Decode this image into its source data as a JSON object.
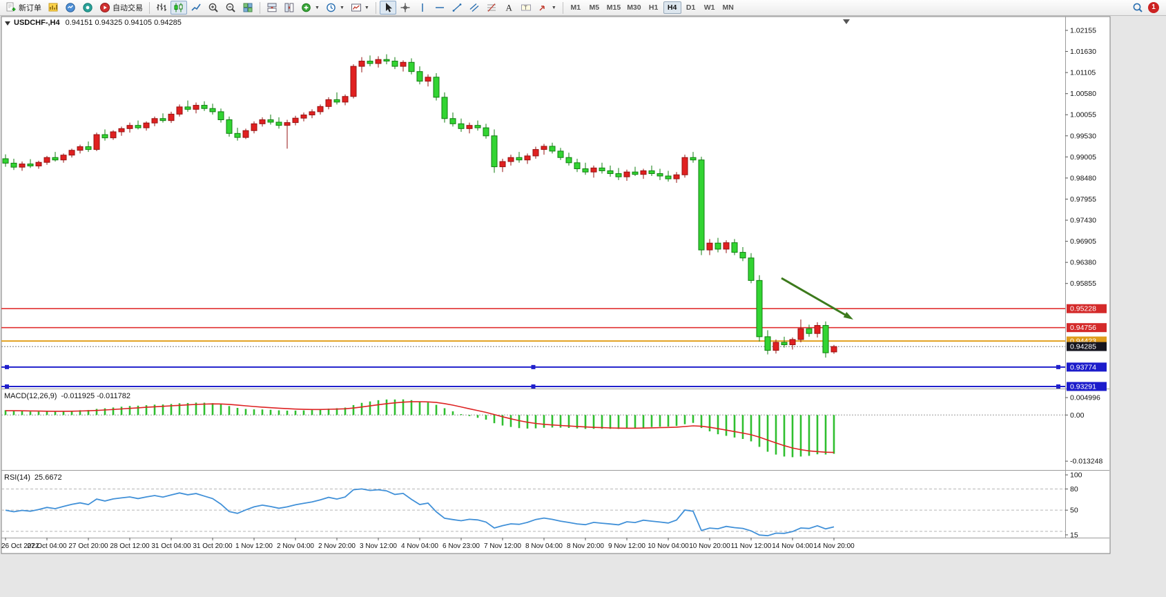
{
  "toolbar": {
    "new_order_label": "新订单",
    "auto_trading_label": "自动交易",
    "timeframes": [
      "M1",
      "M5",
      "M15",
      "M30",
      "H1",
      "H4",
      "D1",
      "W1",
      "MN"
    ],
    "active_timeframe": "H4",
    "notification_count": "1"
  },
  "chart": {
    "symbol_label": "USDCHF-,H4",
    "ohlc_label": "0.94151 0.94325 0.94105 0.94285",
    "price_axis_ticks": [
      "1.02155",
      "1.01630",
      "1.01105",
      "1.00580",
      "1.00055",
      "0.99530",
      "0.99005",
      "0.98480",
      "0.97955",
      "0.97430",
      "0.96905",
      "0.96380",
      "0.95855"
    ],
    "price_tags": [
      {
        "value": 0.95228,
        "label": "0.95228",
        "bg": "#d42a2a",
        "fg": "#ffffff"
      },
      {
        "value": 0.94756,
        "label": "0.94756",
        "bg": "#d42a2a",
        "fg": "#ffffff"
      },
      {
        "value": 0.94423,
        "label": "0.94423",
        "bg": "#df9c1c",
        "fg": "#ffffff"
      },
      {
        "value": 0.94285,
        "label": "0.94285",
        "bg": "#16161f",
        "fg": "#ffffff"
      },
      {
        "value": 0.93774,
        "label": "0.93774",
        "bg": "#1c1ccb",
        "fg": "#ffffff"
      },
      {
        "value": 0.93291,
        "label": "0.93291",
        "bg": "#1c1ccb",
        "fg": "#ffffff"
      }
    ],
    "hlines": [
      {
        "value": 0.95228,
        "color": "#e03030",
        "style": "solid",
        "width": 1.6,
        "handles": false
      },
      {
        "value": 0.94756,
        "color": "#e03030",
        "style": "solid",
        "width": 1.6,
        "handles": false
      },
      {
        "value": 0.94423,
        "color": "#e2a01e",
        "style": "solid",
        "width": 2,
        "handles": false
      },
      {
        "value": 0.94285,
        "color": "#777777",
        "style": "dotted",
        "width": 1,
        "handles": false
      },
      {
        "value": 0.93774,
        "color": "#2020cc",
        "style": "solid",
        "width": 2,
        "handles": true
      },
      {
        "value": 0.93291,
        "color": "#2020cc",
        "style": "solid",
        "width": 2,
        "handles": true
      }
    ],
    "annotation_arrow": {
      "color": "#3c7a1c"
    },
    "time_axis": [
      "26 Oct 2022",
      "27 Oct 04:00",
      "27 Oct 20:00",
      "28 Oct 12:00",
      "31 Oct 04:00",
      "31 Oct 20:00",
      "1 Nov 12:00",
      "2 Nov 04:00",
      "2 Nov 20:00",
      "3 Nov 12:00",
      "4 Nov 04:00",
      "6 Nov 23:00",
      "7 Nov 12:00",
      "8 Nov 04:00",
      "8 Nov 20:00",
      "9 Nov 12:00",
      "10 Nov 04:00",
      "10 Nov 20:00",
      "11 Nov 12:00",
      "14 Nov 04:00",
      "14 Nov 20:00"
    ]
  },
  "chart_data": [
    {
      "type": "candlestick",
      "symbol": "USDCHF",
      "period": "H4",
      "bull_color": "#e02020",
      "bear_color": "#32d432",
      "bull_stroke": "#961212",
      "bear_stroke": "#0f7e0f",
      "candles": [
        [
          0.9896,
          0.9907,
          0.9876,
          0.9885
        ],
        [
          0.9885,
          0.9896,
          0.9868,
          0.9875
        ],
        [
          0.9875,
          0.9889,
          0.9866,
          0.9883
        ],
        [
          0.9883,
          0.9895,
          0.9873,
          0.9878
        ],
        [
          0.9878,
          0.9891,
          0.9871,
          0.9887
        ],
        [
          0.9887,
          0.9903,
          0.9881,
          0.9899
        ],
        [
          0.9899,
          0.9913,
          0.9889,
          0.9893
        ],
        [
          0.9893,
          0.9909,
          0.9886,
          0.9905
        ],
        [
          0.9905,
          0.9921,
          0.9899,
          0.9917
        ],
        [
          0.9917,
          0.9931,
          0.9909,
          0.9926
        ],
        [
          0.9926,
          0.9939,
          0.9913,
          0.9919
        ],
        [
          0.9919,
          0.9961,
          0.9915,
          0.9956
        ],
        [
          0.9956,
          0.9969,
          0.9941,
          0.9948
        ],
        [
          0.9948,
          0.9967,
          0.9943,
          0.9963
        ],
        [
          0.9963,
          0.9976,
          0.9953,
          0.9971
        ],
        [
          0.9971,
          0.9986,
          0.9961,
          0.9979
        ],
        [
          0.9979,
          0.9991,
          0.9969,
          0.9973
        ],
        [
          0.9973,
          0.9989,
          0.9966,
          0.9985
        ],
        [
          0.9985,
          1.0001,
          0.9977,
          0.9996
        ],
        [
          0.9996,
          1.0009,
          0.9986,
          0.9991
        ],
        [
          0.9991,
          1.0013,
          0.9985,
          1.0007
        ],
        [
          1.0007,
          1.0031,
          1.0001,
          1.0025
        ],
        [
          1.0025,
          1.0041,
          1.0013,
          1.0019
        ],
        [
          1.0019,
          1.0036,
          1.0009,
          1.0029
        ],
        [
          1.0029,
          1.0039,
          1.0015,
          1.0021
        ],
        [
          1.0021,
          1.0033,
          1.0006,
          1.0013
        ],
        [
          1.0013,
          1.0021,
          0.9986,
          0.9993
        ],
        [
          0.9993,
          1.0001,
          0.9951,
          0.9959
        ],
        [
          0.9959,
          0.9973,
          0.9941,
          0.9949
        ],
        [
          0.9949,
          0.9971,
          0.9945,
          0.9966
        ],
        [
          0.9966,
          0.9989,
          0.9959,
          0.9983
        ],
        [
          0.9983,
          0.9999,
          0.9976,
          0.9993
        ],
        [
          0.9993,
          1.0006,
          0.9981,
          0.9987
        ],
        [
          0.9987,
          0.9999,
          0.9971,
          0.9979
        ],
        [
          0.9979,
          0.9993,
          0.9921,
          0.9986
        ],
        [
          0.9986,
          1.0003,
          0.9979,
          0.9997
        ],
        [
          0.9997,
          1.0011,
          0.9989,
          1.0005
        ],
        [
          1.0005,
          1.0019,
          0.9997,
          1.0013
        ],
        [
          1.0013,
          1.0031,
          1.0006,
          1.0026
        ],
        [
          1.0026,
          1.0049,
          1.0019,
          1.0043
        ],
        [
          1.0043,
          1.0061,
          1.0031,
          1.0037
        ],
        [
          1.0037,
          1.0056,
          1.0029,
          1.0051
        ],
        [
          1.0051,
          1.0131,
          1.0046,
          1.0126
        ],
        [
          1.0126,
          1.0149,
          1.0111,
          1.0139
        ],
        [
          1.0139,
          1.0153,
          1.0126,
          1.0133
        ],
        [
          1.0133,
          1.0151,
          1.0123,
          1.0143
        ],
        [
          1.0143,
          1.0156,
          1.0131,
          1.0139
        ],
        [
          1.0139,
          1.0149,
          1.0119,
          1.0126
        ],
        [
          1.0126,
          1.0141,
          1.0113,
          1.0136
        ],
        [
          1.0136,
          1.0146,
          1.0106,
          1.0113
        ],
        [
          1.0113,
          1.0126,
          1.0081,
          1.0089
        ],
        [
          1.0089,
          1.0106,
          1.0076,
          1.0099
        ],
        [
          1.0099,
          1.0109,
          1.0041,
          1.0049
        ],
        [
          1.0049,
          1.0061,
          0.9986,
          0.9996
        ],
        [
          0.9996,
          1.0011,
          0.9976,
          0.9983
        ],
        [
          0.9983,
          0.9996,
          0.9963,
          0.9971
        ],
        [
          0.9971,
          0.9986,
          0.9959,
          0.9979
        ],
        [
          0.9979,
          0.9991,
          0.9966,
          0.9973
        ],
        [
          0.9973,
          0.9983,
          0.9946,
          0.9953
        ],
        [
          0.9953,
          0.9969,
          0.9861,
          0.9876
        ],
        [
          0.9876,
          0.9896,
          0.9863,
          0.9889
        ],
        [
          0.9889,
          0.9906,
          0.9879,
          0.9899
        ],
        [
          0.9899,
          0.9913,
          0.9886,
          0.9893
        ],
        [
          0.9893,
          0.9909,
          0.9883,
          0.9903
        ],
        [
          0.9903,
          0.9926,
          0.9896,
          0.9919
        ],
        [
          0.9919,
          0.9933,
          0.9906,
          0.9927
        ],
        [
          0.9927,
          0.9936,
          0.9909,
          0.9915
        ],
        [
          0.9915,
          0.9923,
          0.9893,
          0.9899
        ],
        [
          0.9899,
          0.9911,
          0.9879,
          0.9886
        ],
        [
          0.9886,
          0.9896,
          0.9863,
          0.9871
        ],
        [
          0.9871,
          0.9886,
          0.9856,
          0.9863
        ],
        [
          0.9863,
          0.9879,
          0.9849,
          0.9873
        ],
        [
          0.9873,
          0.9886,
          0.9859,
          0.9866
        ],
        [
          0.9866,
          0.9879,
          0.9851,
          0.9859
        ],
        [
          0.9859,
          0.9873,
          0.9843,
          0.9851
        ],
        [
          0.9851,
          0.9869,
          0.9841,
          0.9863
        ],
        [
          0.9863,
          0.9876,
          0.9853,
          0.9857
        ],
        [
          0.9857,
          0.9871,
          0.9846,
          0.9866
        ],
        [
          0.9866,
          0.9879,
          0.9853,
          0.9859
        ],
        [
          0.9859,
          0.9871,
          0.9843,
          0.9853
        ],
        [
          0.9853,
          0.9866,
          0.9839,
          0.9846
        ],
        [
          0.9846,
          0.9863,
          0.9836,
          0.9856
        ],
        [
          0.9856,
          0.9906,
          0.9849,
          0.9899
        ],
        [
          0.9899,
          0.9913,
          0.9886,
          0.9893
        ],
        [
          0.9893,
          0.9901,
          0.9656,
          0.9669
        ],
        [
          0.9669,
          0.9696,
          0.9656,
          0.9686
        ],
        [
          0.9686,
          0.9699,
          0.9663,
          0.9671
        ],
        [
          0.9671,
          0.9693,
          0.9661,
          0.9687
        ],
        [
          0.9687,
          0.9696,
          0.9656,
          0.9663
        ],
        [
          0.9663,
          0.9676,
          0.9641,
          0.9649
        ],
        [
          0.9649,
          0.9661,
          0.9586,
          0.9593
        ],
        [
          0.9593,
          0.9606,
          0.9441,
          0.9453
        ],
        [
          0.9453,
          0.9469,
          0.9409,
          0.9419
        ],
        [
          0.9419,
          0.9446,
          0.9411,
          0.9439
        ],
        [
          0.9439,
          0.9453,
          0.9426,
          0.9433
        ],
        [
          0.9433,
          0.9451,
          0.9421,
          0.9446
        ],
        [
          0.9446,
          0.9496,
          0.9439,
          0.9473
        ],
        [
          0.9473,
          0.9483,
          0.9453,
          0.9461
        ],
        [
          0.9461,
          0.9489,
          0.9451,
          0.9481
        ],
        [
          0.9481,
          0.9491,
          0.9401,
          0.9413
        ],
        [
          0.94151,
          0.94325,
          0.94105,
          0.94285
        ]
      ]
    },
    {
      "type": "line",
      "name": "MACD(12,26,9)",
      "params": {
        "fast": 12,
        "slow": 26,
        "signal": 9
      },
      "values_label": "-0.011925 -0.011782",
      "axis": [
        {
          "label": "0.004996",
          "value": 0.004996
        },
        {
          "label": "0.00",
          "value": 0
        },
        {
          "label": "-0.013248",
          "value": -0.013248
        }
      ],
      "histogram_color": "#2fbf2f",
      "signal_color": "#dd2222"
    },
    {
      "type": "line",
      "name": "RSI(14)",
      "params": {
        "period": 14
      },
      "value_label": "25.6672",
      "axis": [
        {
          "label": "100",
          "value": 100
        },
        {
          "label": "80",
          "value": 80
        },
        {
          "label": "50",
          "value": 50
        },
        {
          "label": "15",
          "value": 15
        }
      ],
      "levels": [
        80,
        50,
        20
      ],
      "line_color": "#4090d8"
    }
  ]
}
